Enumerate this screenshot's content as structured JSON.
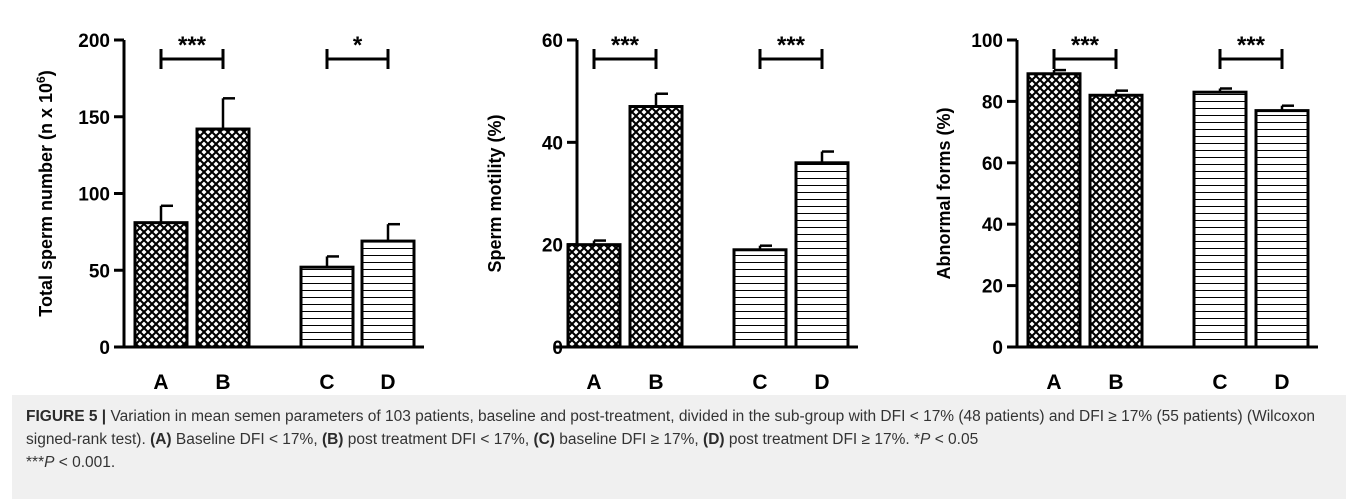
{
  "chart_data": [
    {
      "type": "bar",
      "categories": [
        "A",
        "B",
        "C",
        "D"
      ],
      "values": [
        81,
        142,
        52,
        69
      ],
      "error_bars": [
        11,
        20,
        7,
        11
      ],
      "ylabel": "Total sperm number (n x 10",
      "ylabel_sup": "6",
      "ylabel_close": ")",
      "ylim": [
        0,
        200
      ],
      "yticks": [
        "0",
        "50",
        "100",
        "150",
        "200"
      ],
      "patterns": [
        "crosshatch",
        "crosshatch",
        "horizontal",
        "horizontal"
      ],
      "significance": [
        {
          "pair": [
            "A",
            "B"
          ],
          "label": "***"
        },
        {
          "pair": [
            "C",
            "D"
          ],
          "label": "*"
        }
      ]
    },
    {
      "type": "bar",
      "categories": [
        "A",
        "B",
        "C",
        "D"
      ],
      "values": [
        20,
        47,
        19,
        36
      ],
      "error_bars": [
        0.8,
        2.5,
        0.8,
        2.2
      ],
      "ylabel": "Sperm motility (%)",
      "ylim": [
        0,
        60
      ],
      "yticks": [
        "0",
        "20",
        "40",
        "60"
      ],
      "patterns": [
        "crosshatch",
        "crosshatch",
        "horizontal",
        "horizontal"
      ],
      "significance": [
        {
          "pair": [
            "A",
            "B"
          ],
          "label": "***"
        },
        {
          "pair": [
            "C",
            "D"
          ],
          "label": "***"
        }
      ]
    },
    {
      "type": "bar",
      "categories": [
        "A",
        "B",
        "C",
        "D"
      ],
      "values": [
        89,
        82,
        83,
        77
      ],
      "error_bars": [
        1.2,
        1.5,
        1.2,
        1.6
      ],
      "ylabel": "Abnormal forms (%)",
      "ylim": [
        0,
        100
      ],
      "yticks": [
        "0",
        "20",
        "40",
        "60",
        "80",
        "100"
      ],
      "patterns": [
        "crosshatch",
        "crosshatch",
        "horizontal",
        "horizontal"
      ],
      "significance": [
        {
          "pair": [
            "A",
            "B"
          ],
          "label": "***"
        },
        {
          "pair": [
            "C",
            "D"
          ],
          "label": "***"
        }
      ]
    }
  ],
  "caption": {
    "label": "FIGURE 5 |",
    "t1": " Variation in mean semen parameters of 103 patients, baseline and post-treatment, divided in the sub-group with DFI < 17% (48 patients) and DFI ≥ 17% (55 patients) (Wilcoxon signed-rank test). ",
    "A_tag": "(A)",
    "A_text": " Baseline DFI < 17%, ",
    "B_tag": "(B)",
    "B_text": " post treatment DFI < 17%, ",
    "C_tag": "(C)",
    "C_text": " baseline DFI ≥ 17%, ",
    "D_tag": "(D)",
    "D_text": " post treatment DFI ≥ 17%. ",
    "p1_stars": "*",
    "p1_letter": "P",
    "p1_rest": " < 0.05",
    "p2_stars": "***",
    "p2_letter": "P",
    "p2_rest": " < 0.001."
  }
}
